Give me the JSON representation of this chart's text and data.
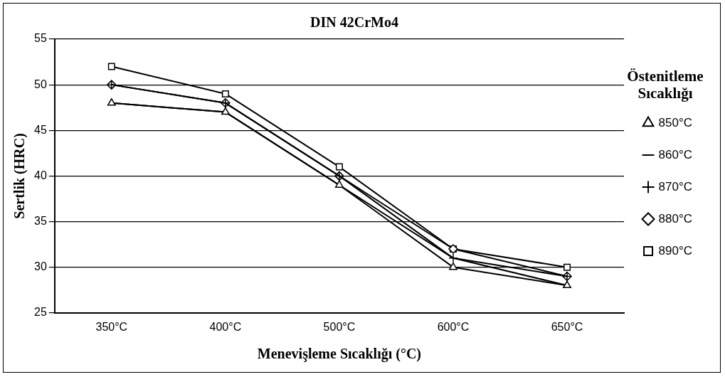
{
  "chart_data": {
    "type": "line",
    "title": "DIN 42CrMo4",
    "xlabel": "Menevişleme Sıcaklığı (°C)",
    "ylabel": "Sertlik (HRC)",
    "legend_title": "Östenitleme Sıcaklığı",
    "categories": [
      "350°C",
      "400°C",
      "500°C",
      "600°C",
      "650°C"
    ],
    "series": [
      {
        "name": "850°C",
        "color": "#000000",
        "marker": "triangle",
        "values": [
          48,
          47,
          39,
          30,
          28
        ]
      },
      {
        "name": "860°C",
        "color": "#000000",
        "marker": "none",
        "values": [
          48,
          47,
          39,
          31,
          28
        ]
      },
      {
        "name": "870°C",
        "color": "#000000",
        "marker": "cross",
        "values": [
          50,
          48,
          40,
          31,
          29
        ]
      },
      {
        "name": "880°C",
        "color": "#000000",
        "marker": "diamond",
        "values": [
          50,
          48,
          40,
          32,
          29
        ]
      },
      {
        "name": "890°C",
        "color": "#000000",
        "marker": "square",
        "values": [
          52,
          49,
          41,
          32,
          30
        ]
      }
    ],
    "ylim": [
      25,
      55
    ],
    "yticks": [
      25,
      30,
      35,
      40,
      45,
      50,
      55
    ],
    "grid": "y",
    "legend": "right"
  }
}
